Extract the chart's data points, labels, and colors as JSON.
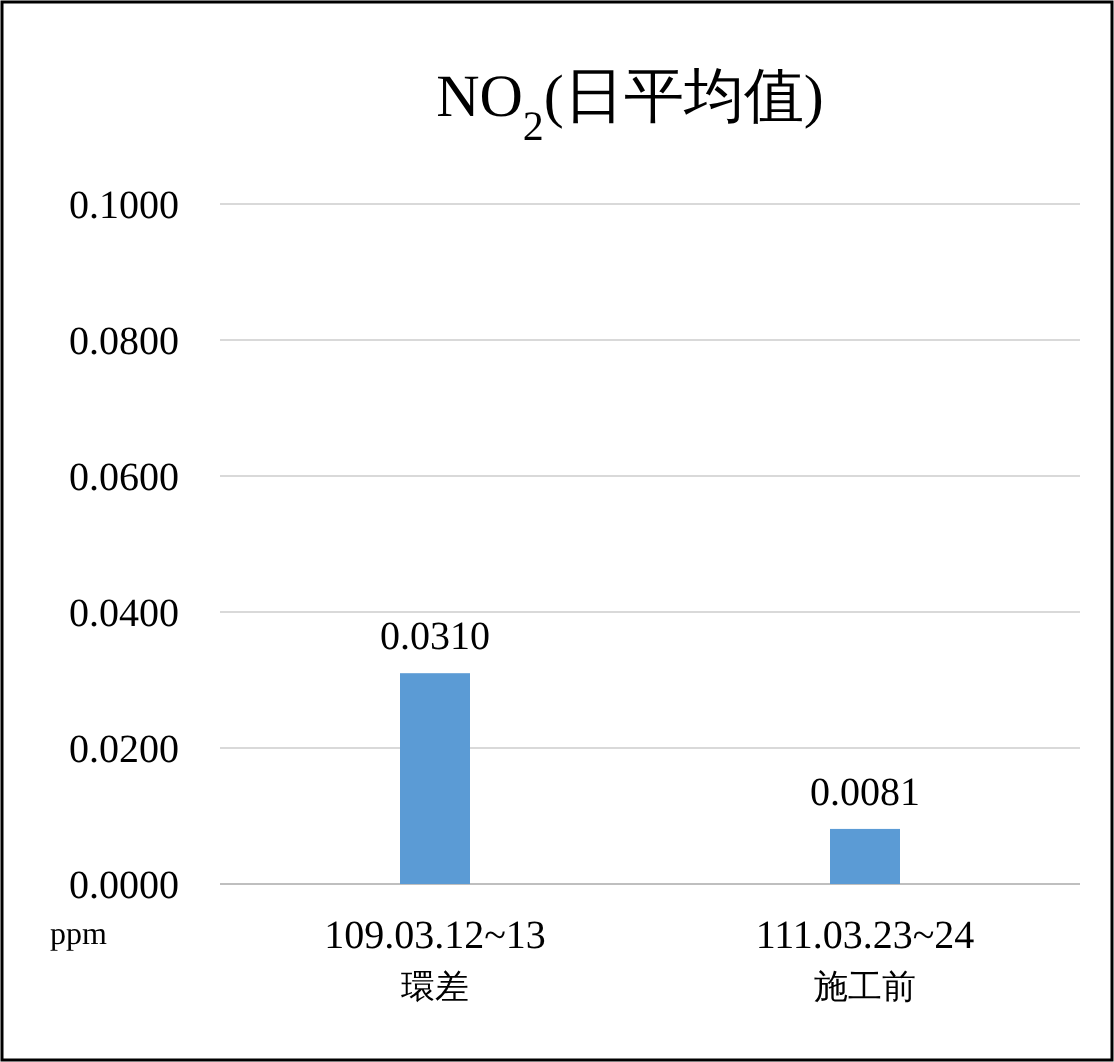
{
  "chart_data": {
    "type": "bar",
    "title": "NO$_{2}$(日平均值)",
    "ylabel": "ppm",
    "categories": [
      "109.03.12~13\n環差",
      "111.03.23~24\n施工前"
    ],
    "values": [
      0.031,
      0.0081
    ],
    "value_labels": [
      "0.0310",
      "0.0081"
    ],
    "color": "#5b9bd5",
    "ylim": [
      0,
      0.1
    ],
    "yticks": [
      {
        "value": 0,
        "label": "0.0000"
      },
      {
        "value": 0.02,
        "label": "0.0200"
      },
      {
        "value": 0.04,
        "label": "0.0400"
      },
      {
        "value": 0.06,
        "label": "0.0600"
      },
      {
        "value": 0.08,
        "label": "0.0800"
      },
      {
        "value": 0.1,
        "label": "0.1000"
      }
    ],
    "grid": "y"
  }
}
